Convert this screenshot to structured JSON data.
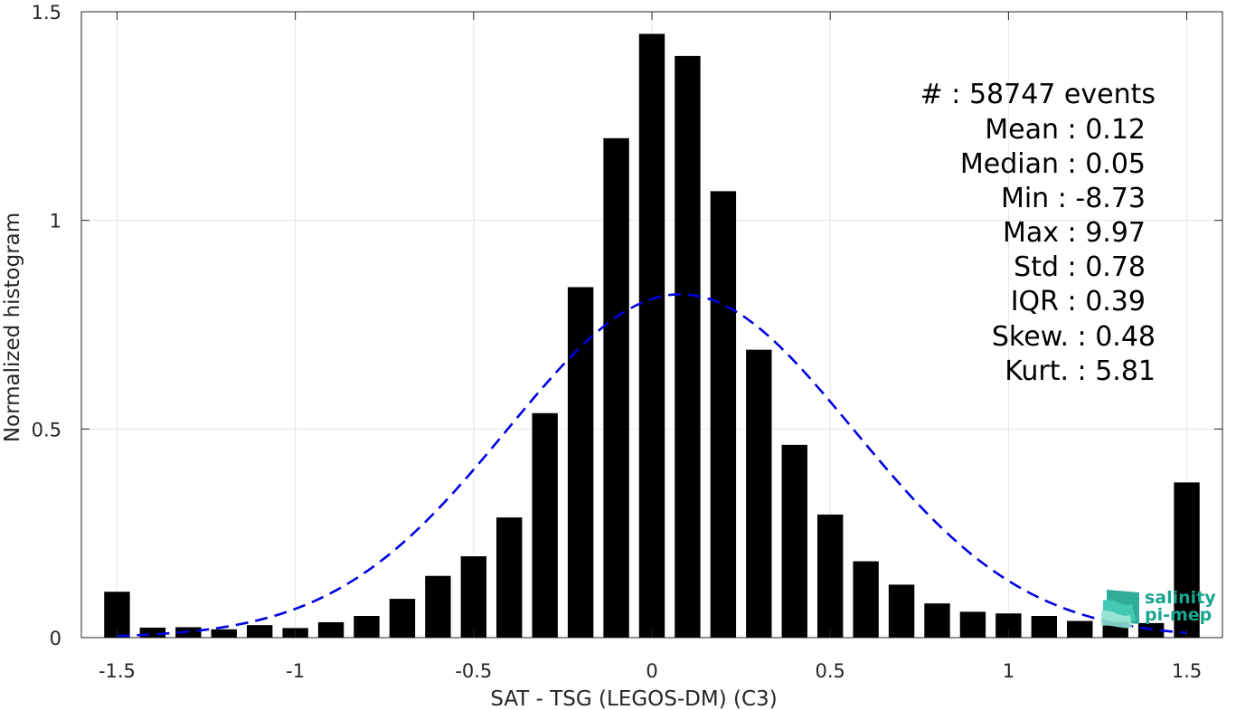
{
  "chart_data": {
    "type": "bar",
    "xlabel": "SAT - TSG (LEGOS-DM) (C3)",
    "ylabel": "Normalized histogram",
    "xlim": [
      -1.6,
      1.6
    ],
    "ylim": [
      0,
      1.5
    ],
    "grid": true,
    "bin_width": 0.1,
    "x_ticks": [
      -1.5,
      -1,
      -0.5,
      0,
      0.5,
      1,
      1.5
    ],
    "x_tick_labels": [
      "-1.5",
      "-1",
      "-0.5",
      "0",
      "0.5",
      "1",
      "1.5"
    ],
    "y_ticks": [
      0,
      0.5,
      1,
      1.5
    ],
    "y_tick_labels": [
      "0",
      "0.5",
      "1",
      "1.5"
    ],
    "x": [
      -1.5,
      -1.4,
      -1.3,
      -1.2,
      -1.1,
      -1.0,
      -0.9,
      -0.8,
      -0.7,
      -0.6,
      -0.5,
      -0.4,
      -0.3,
      -0.2,
      -0.1,
      0.0,
      0.1,
      0.2,
      0.3,
      0.4,
      0.5,
      0.6,
      0.7,
      0.8,
      0.9,
      1.0,
      1.1,
      1.2,
      1.3,
      1.4,
      1.5
    ],
    "values": [
      0.11,
      0.024,
      0.025,
      0.02,
      0.03,
      0.023,
      0.037,
      0.052,
      0.093,
      0.148,
      0.195,
      0.288,
      0.538,
      0.84,
      1.197,
      1.447,
      1.394,
      1.07,
      0.69,
      0.462,
      0.295,
      0.183,
      0.127,
      0.082,
      0.062,
      0.058,
      0.052,
      0.04,
      0.037,
      0.035,
      0.372
    ],
    "bar_color": "#000000",
    "fit_curve": {
      "style": "dashed",
      "color": "#0000e0",
      "mean": 0.08,
      "std": 0.485,
      "peak": 0.823,
      "x_range": [
        -1.5,
        1.5
      ]
    },
    "stats": [
      {
        "label": "#  ",
        "value": "58747 events"
      },
      {
        "label": "Mean",
        "value": "0.12"
      },
      {
        "label": "Median",
        "value": "0.05"
      },
      {
        "label": "Min",
        "value": "-8.73"
      },
      {
        "label": "Max",
        "value": "9.97"
      },
      {
        "label": "Std",
        "value": "0.78"
      },
      {
        "label": "IQR",
        "value": "0.39"
      },
      {
        "label": "Skew.",
        "value": "0.48"
      },
      {
        "label": "Kurt.",
        "value": "5.81"
      }
    ]
  },
  "stats_text": [
    "#  : 58747 events",
    "Mean : 0.12",
    "Median : 0.05",
    "Min : -8.73",
    "Max : 9.97",
    "Std : 0.78",
    "IQR : 0.39",
    "Skew. : 0.48",
    "Kurt. : 5.81"
  ],
  "logo": {
    "line1": "salinity",
    "line2": "pi-mep",
    "color": "#1aa58e"
  }
}
